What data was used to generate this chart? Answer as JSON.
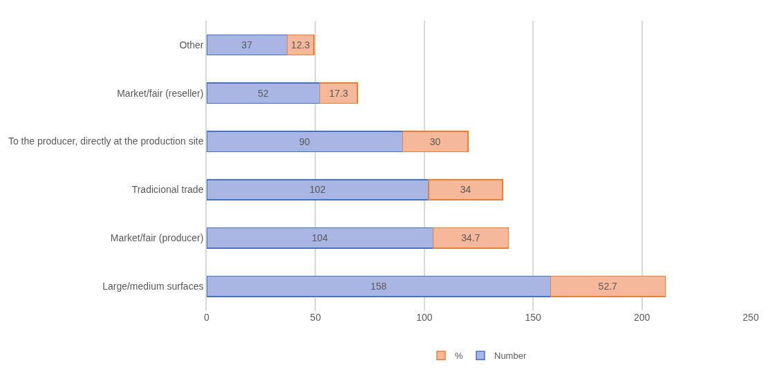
{
  "chart_data": {
    "type": "bar",
    "orientation": "horizontal",
    "stacked": true,
    "data_labels": true,
    "categories": [
      "Other",
      "Market/fair (reseller)",
      "To the producer, directly at the production site",
      "Tradicional trade",
      "Market/fair (producer)",
      "Large/medium surfaces"
    ],
    "series": [
      {
        "name": "Number",
        "color": "#a9b5e3",
        "values": [
          37,
          52,
          90,
          102,
          104,
          158
        ]
      },
      {
        "name": "%",
        "color": "#f5b89a",
        "values": [
          12.3,
          17.3,
          30,
          34,
          34.7,
          52.7
        ]
      }
    ],
    "xlim": [
      0,
      250
    ],
    "xticks": [
      0,
      50,
      100,
      150,
      200,
      250
    ],
    "grid": "x",
    "legend": "bottom"
  }
}
